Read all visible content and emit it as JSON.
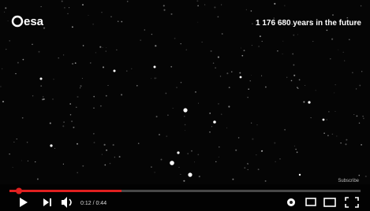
{
  "logo": "esa",
  "overlay": "1 176 680 years in the future",
  "watermark": "Subscribe",
  "controls": {
    "time": "0:12 / 0:44"
  }
}
